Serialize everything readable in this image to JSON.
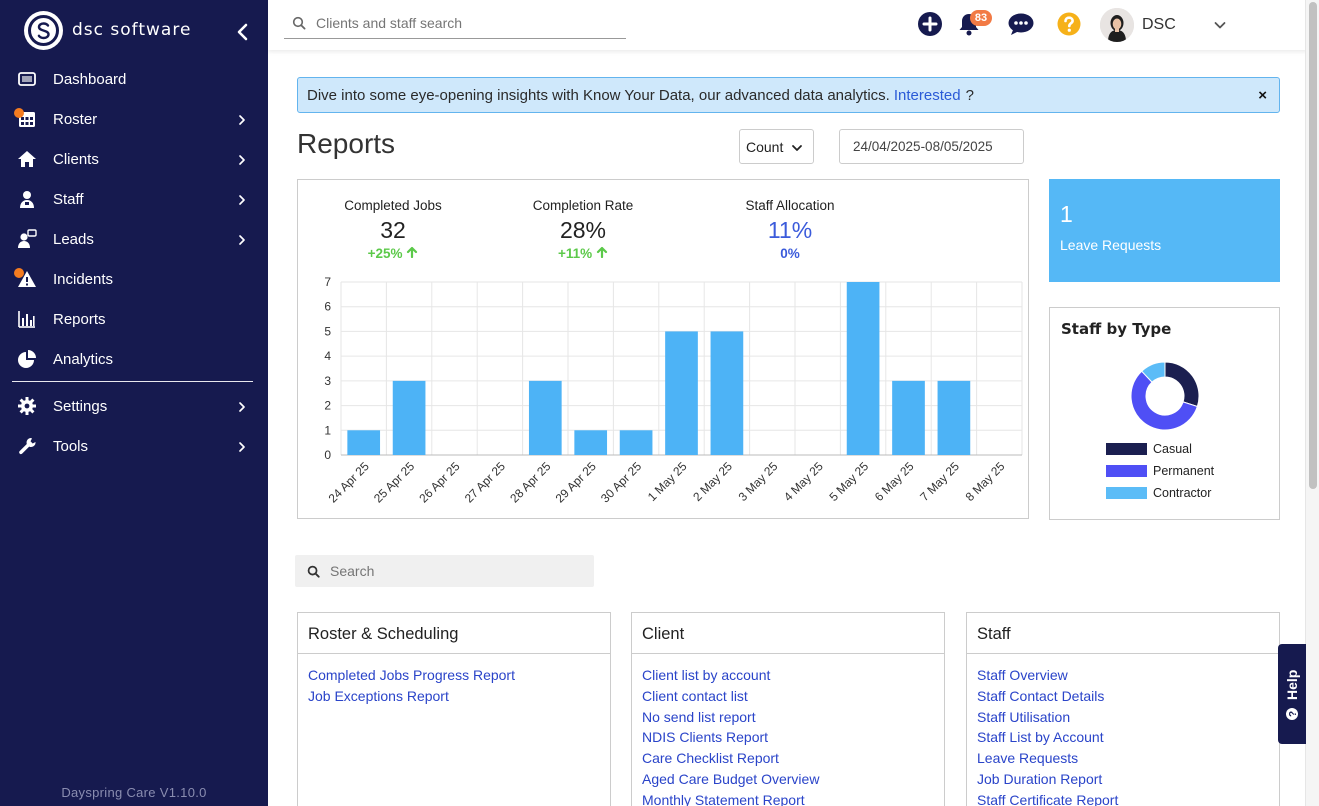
{
  "app": {
    "logo_text": "dsc software",
    "version": "Dayspring Care V1.10.0"
  },
  "sidebar": {
    "items": [
      {
        "label": "Dashboard",
        "icon": "dashboard-icon",
        "chevron": false,
        "dot": false
      },
      {
        "label": "Roster",
        "icon": "calendar-grid-icon",
        "chevron": true,
        "dot": true
      },
      {
        "label": "Clients",
        "icon": "home-icon",
        "chevron": true,
        "dot": false
      },
      {
        "label": "Staff",
        "icon": "user-badge-icon",
        "chevron": true,
        "dot": false
      },
      {
        "label": "Leads",
        "icon": "user-chat-icon",
        "chevron": true,
        "dot": false
      },
      {
        "label": "Incidents",
        "icon": "warning-icon",
        "chevron": false,
        "dot": true
      },
      {
        "label": "Reports",
        "icon": "bar-chart-icon",
        "chevron": false,
        "dot": false
      },
      {
        "label": "Analytics",
        "icon": "pie-chart-icon",
        "chevron": false,
        "dot": false
      },
      {
        "label": "Settings",
        "icon": "gear-icon",
        "chevron": true,
        "dot": false
      },
      {
        "label": "Tools",
        "icon": "wrench-icon",
        "chevron": true,
        "dot": false
      }
    ]
  },
  "topbar": {
    "search_placeholder": "Clients and staff search",
    "notification_count": "83",
    "user_name": "DSC"
  },
  "banner": {
    "text": "Dive into some eye-opening insights with Know Your Data, our advanced data analytics.",
    "link": "Interested",
    "suffix": "?",
    "close": "×"
  },
  "page": {
    "title": "Reports",
    "metric_select": "Count",
    "date_range": "24/04/2025-08/05/2025"
  },
  "stats": [
    {
      "label": "Completed Jobs",
      "value": "32",
      "change": "+25%",
      "trend": "up",
      "value_color": "#222222",
      "change_color": "#5cc94a"
    },
    {
      "label": "Completion Rate",
      "value": "28%",
      "change": "+11%",
      "trend": "up",
      "value_color": "#222222",
      "change_color": "#5cc94a"
    },
    {
      "label": "Staff Allocation",
      "value": "11%",
      "change": "0%",
      "trend": "none",
      "value_color": "#3b5bdb",
      "change_color": "#3b5bdb"
    }
  ],
  "chart_data": {
    "type": "bar",
    "categories": [
      "24 Apr 25",
      "25 Apr 25",
      "26 Apr 25",
      "27 Apr 25",
      "28 Apr 25",
      "29 Apr 25",
      "30 Apr 25",
      "1 May 25",
      "2 May 25",
      "3 May 25",
      "4 May 25",
      "5 May 25",
      "6 May 25",
      "7 May 25",
      "8 May 25"
    ],
    "values": [
      1,
      3,
      0,
      0,
      3,
      1,
      1,
      5,
      5,
      0,
      0,
      7,
      3,
      3,
      0
    ],
    "ylim": [
      0,
      7
    ],
    "yticks": [
      0,
      1,
      2,
      3,
      4,
      5,
      6,
      7
    ],
    "grid": true,
    "bar_color": "#4db3f6"
  },
  "leave": {
    "count": "1",
    "label": "Leave Requests"
  },
  "staff_by_type": {
    "title": "Staff by Type",
    "chart_data": {
      "type": "pie",
      "labels": [
        "Casual",
        "Permanent",
        "Contractor"
      ],
      "values": [
        30,
        58,
        12
      ],
      "colors": [
        "#1b1f50",
        "#4f4ff5",
        "#5bbcf7"
      ]
    }
  },
  "report_search": {
    "placeholder": "Search"
  },
  "categories": [
    {
      "title": "Roster & Scheduling",
      "links": [
        "Completed Jobs Progress Report",
        "Job Exceptions Report"
      ]
    },
    {
      "title": "Client",
      "links": [
        "Client list by account",
        "Client contact list",
        "No send list report",
        "NDIS Clients Report",
        "Care Checklist Report",
        "Aged Care Budget Overview",
        "Monthly Statement Report"
      ]
    },
    {
      "title": "Staff",
      "links": [
        "Staff Overview",
        "Staff Contact Details",
        "Staff Utilisation",
        "Staff List by Account",
        "Leave Requests",
        "Job Duration Report",
        "Staff Certificate Report"
      ]
    }
  ],
  "help": {
    "label": "Help"
  }
}
